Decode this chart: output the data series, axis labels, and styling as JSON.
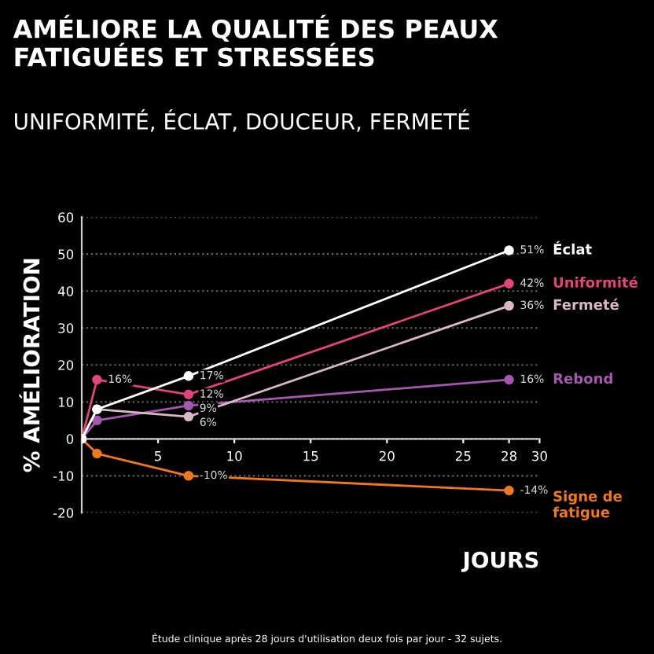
{
  "chart_data": {
    "type": "line",
    "title": "AMÉLIORE LA QUALITÉ DES PEAUX FATIGUÉES ET STRESSÉES",
    "subtitle": "UNIFORMITÉ, ÉCLAT, DOUCEUR, FERMETÉ",
    "xlabel": "JOURS",
    "ylabel": "% AMÉLIORATION",
    "x": [
      0,
      1,
      7,
      28
    ],
    "series": [
      {
        "name": "Éclat",
        "color": "#ffffff",
        "values": [
          0,
          8,
          17,
          51
        ],
        "value_labels": [
          null,
          null,
          "17%",
          "51%"
        ]
      },
      {
        "name": "Uniformité",
        "color": "#e0457b",
        "values": [
          0,
          16,
          12,
          42
        ],
        "value_labels": [
          null,
          "16%",
          "12%",
          "42%"
        ]
      },
      {
        "name": "Fermeté",
        "color": "#d9b9c2",
        "values": [
          0,
          8,
          6,
          36
        ],
        "value_labels": [
          null,
          null,
          "6%",
          "36%"
        ]
      },
      {
        "name": "Rebond",
        "color": "#a35aad",
        "values": [
          0,
          5,
          9,
          16
        ],
        "value_labels": [
          null,
          null,
          "9%",
          "16%"
        ]
      },
      {
        "name": "Signe de fatigue",
        "color": "#f07820",
        "values": [
          0,
          -4,
          -10,
          -14
        ],
        "value_labels": [
          null,
          null,
          "-10%",
          "-14%"
        ]
      }
    ],
    "xlim": [
      0,
      30
    ],
    "xticks": [
      {
        "value": 0,
        "label": null
      },
      5,
      10,
      15,
      20,
      25,
      28,
      30
    ],
    "ylim": [
      -20,
      60
    ],
    "yticks": [
      -20,
      -10,
      0,
      10,
      20,
      30,
      40,
      50,
      60
    ],
    "grid": "y",
    "marker": "circle",
    "line_style": "solid",
    "annotations": [
      "Étude clinique après 28 jours d'utilisation deux fois par jour - 32 sujets."
    ]
  }
}
